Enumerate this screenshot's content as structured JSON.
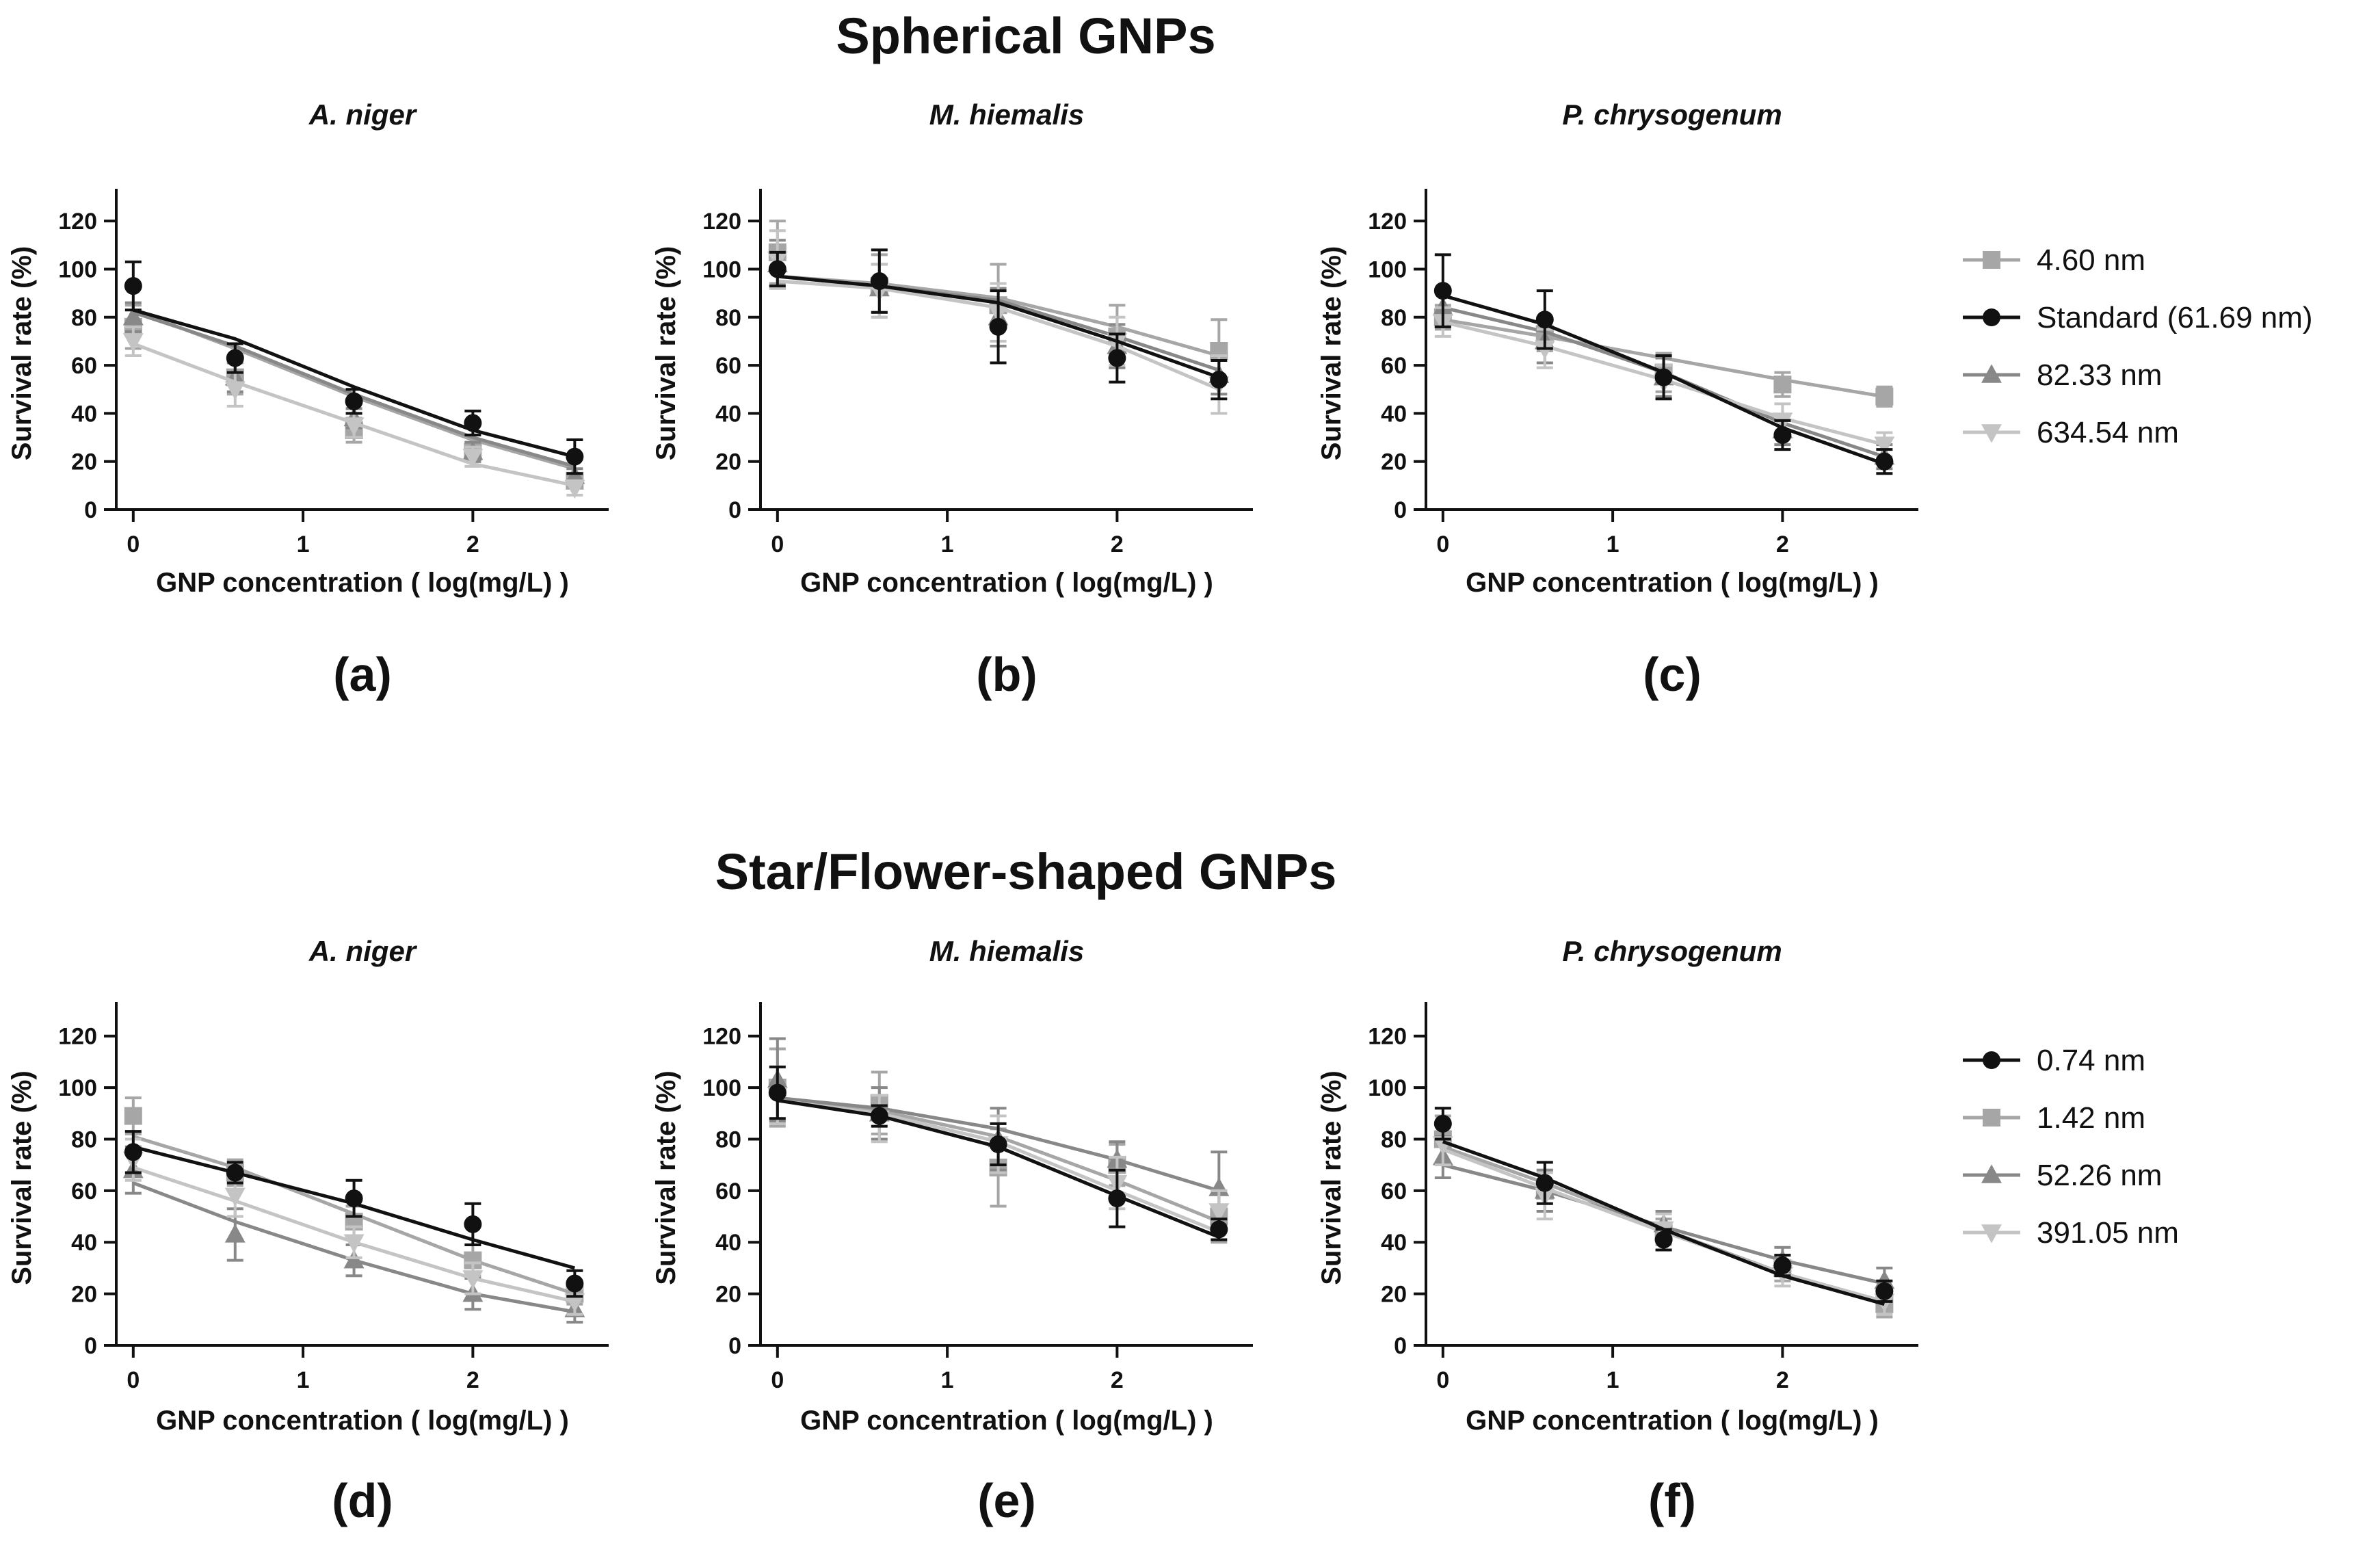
{
  "figure": {
    "row_titles": [
      "Spherical GNPs",
      "Star/Flower-shaped GNPs"
    ],
    "x_tick_labels": [
      "0",
      "1",
      "2"
    ],
    "y_tick_labels": [
      "0",
      "20",
      "40",
      "60",
      "80",
      "100",
      "120"
    ]
  },
  "series_styles": [
    {
      "name": "4.60 nm",
      "color": "#a6a6a6",
      "marker": "square"
    },
    {
      "name": "Standard (61.69 nm)",
      "color": "#111111",
      "marker": "circle"
    },
    {
      "name": "82.33 nm",
      "color": "#888888",
      "marker": "triangle"
    },
    {
      "name": "634.54 nm",
      "color": "#c4c4c4",
      "marker": "triangle-down"
    },
    {
      "name": "0.74 nm",
      "color": "#111111",
      "marker": "circle"
    },
    {
      "name": "1.42 nm",
      "color": "#a6a6a6",
      "marker": "square"
    },
    {
      "name": "52.26 nm",
      "color": "#888888",
      "marker": "triangle"
    },
    {
      "name": "391.05 nm",
      "color": "#c4c4c4",
      "marker": "triangle-down"
    }
  ],
  "chart_data": [
    {
      "type": "scatter",
      "panel_label": "(a)",
      "row": 0,
      "col": 0,
      "title": "A. niger",
      "xlabel": "GNP concentration ( log(mg/L) )",
      "ylabel": "Survival rate (%)",
      "xlim": [
        -0.1,
        2.8
      ],
      "ylim": [
        0,
        130
      ],
      "x": [
        0,
        0.6,
        1.3,
        2.0,
        2.6
      ],
      "series": [
        {
          "name": "4.60 nm",
          "values": [
            76,
            55,
            33,
            24,
            12
          ],
          "errors": [
            9,
            7,
            5,
            4,
            3
          ],
          "fit": [
            83,
            67,
            47,
            29,
            17
          ]
        },
        {
          "name": "Standard (61.69 nm)",
          "values": [
            93,
            63,
            45,
            36,
            22
          ],
          "errors": [
            10,
            6,
            5,
            5,
            7
          ],
          "fit": [
            83,
            71,
            51,
            33,
            22
          ]
        },
        {
          "name": "82.33 nm",
          "values": [
            80,
            55,
            38,
            24,
            14
          ],
          "errors": [
            6,
            6,
            4,
            4,
            3
          ],
          "fit": [
            82,
            68,
            48,
            30,
            18
          ]
        },
        {
          "name": "634.54 nm",
          "values": [
            70,
            50,
            35,
            22,
            9
          ],
          "errors": [
            6,
            7,
            5,
            4,
            3
          ],
          "fit": [
            69,
            53,
            36,
            19,
            10
          ]
        }
      ],
      "legend": "right"
    },
    {
      "type": "scatter",
      "panel_label": "(b)",
      "row": 0,
      "col": 1,
      "title": "M. hiemalis",
      "xlabel": "GNP concentration ( log(mg/L) )",
      "ylabel": "Survival rate (%)",
      "xlim": [
        -0.1,
        2.8
      ],
      "ylim": [
        0,
        130
      ],
      "x": [
        0,
        0.6,
        1.3,
        2.0,
        2.6
      ],
      "series": [
        {
          "name": "4.60 nm",
          "values": [
            107,
            93,
            85,
            72,
            66
          ],
          "errors": [
            13,
            13,
            17,
            13,
            13
          ],
          "fit": [
            97,
            94,
            88,
            76,
            64
          ]
        },
        {
          "name": "Standard (61.69 nm)",
          "values": [
            100,
            95,
            76,
            63,
            54
          ],
          "errors": [
            7,
            13,
            15,
            10,
            8
          ],
          "fit": [
            97,
            93,
            86,
            70,
            55
          ]
        },
        {
          "name": "82.33 nm",
          "values": [
            102,
            92,
            80,
            68,
            56
          ],
          "errors": [
            10,
            10,
            12,
            9,
            8
          ],
          "fit": [
            97,
            93,
            87,
            72,
            58
          ]
        },
        {
          "name": "634.54 nm",
          "values": [
            104,
            91,
            82,
            70,
            52
          ],
          "errors": [
            12,
            11,
            12,
            10,
            12
          ],
          "fit": [
            95,
            92,
            84,
            68,
            50
          ]
        }
      ]
    },
    {
      "type": "scatter",
      "panel_label": "(c)",
      "row": 0,
      "col": 2,
      "title": "P. chrysogenum",
      "xlabel": "GNP concentration ( log(mg/L) )",
      "ylabel": "Survival rate (%)",
      "xlim": [
        -0.1,
        2.8
      ],
      "ylim": [
        0,
        130
      ],
      "x": [
        0,
        0.6,
        1.3,
        2.0,
        2.6
      ],
      "series": [
        {
          "name": "4.60 nm",
          "values": [
            80,
            73,
            57,
            52,
            47
          ],
          "errors": [
            5,
            7,
            8,
            5,
            4
          ],
          "fit": [
            79,
            72,
            63,
            54,
            47
          ]
        },
        {
          "name": "Standard (61.69 nm)",
          "values": [
            91,
            79,
            55,
            31,
            20
          ],
          "errors": [
            15,
            12,
            9,
            6,
            5
          ],
          "fit": [
            89,
            77,
            57,
            34,
            19
          ]
        },
        {
          "name": "82.33 nm",
          "values": [
            84,
            70,
            55,
            33,
            22
          ],
          "errors": [
            8,
            9,
            8,
            6,
            5
          ],
          "fit": [
            84,
            74,
            57,
            36,
            22
          ]
        },
        {
          "name": "634.54 nm",
          "values": [
            78,
            67,
            53,
            37,
            27
          ],
          "errors": [
            6,
            8,
            7,
            7,
            5
          ],
          "fit": [
            78,
            68,
            54,
            38,
            27
          ]
        }
      ]
    },
    {
      "type": "scatter",
      "panel_label": "(d)",
      "row": 1,
      "col": 0,
      "title": "A. niger",
      "xlabel": "GNP concentration ( log(mg/L) )",
      "ylabel": "Survival rate (%)",
      "xlim": [
        -0.1,
        2.8
      ],
      "ylim": [
        0,
        130
      ],
      "x": [
        0,
        0.6,
        1.3,
        2.0,
        2.6
      ],
      "series": [
        {
          "name": "0.74 nm",
          "values": [
            75,
            67,
            57,
            47,
            24
          ],
          "errors": [
            8,
            4,
            7,
            8,
            5
          ],
          "fit": [
            77,
            67,
            55,
            41,
            30
          ]
        },
        {
          "name": "1.42 nm",
          "values": [
            89,
            67,
            48,
            33,
            20
          ],
          "errors": [
            7,
            5,
            6,
            6,
            4
          ],
          "fit": [
            81,
            69,
            51,
            33,
            20
          ]
        },
        {
          "name": "52.26 nm",
          "values": [
            68,
            43,
            33,
            20,
            14
          ],
          "errors": [
            9,
            10,
            6,
            6,
            5
          ],
          "fit": [
            63,
            48,
            33,
            20,
            13
          ]
        },
        {
          "name": "391.05 nm",
          "values": [
            72,
            58,
            40,
            26,
            17
          ],
          "errors": [
            8,
            8,
            6,
            6,
            5
          ],
          "fit": [
            69,
            56,
            40,
            26,
            17
          ]
        }
      ],
      "legend": "right"
    },
    {
      "type": "scatter",
      "panel_label": "(e)",
      "row": 1,
      "col": 1,
      "title": "M. hiemalis",
      "xlabel": "GNP concentration ( log(mg/L) )",
      "ylabel": "Survival rate (%)",
      "xlim": [
        -0.1,
        2.8
      ],
      "ylim": [
        0,
        130
      ],
      "x": [
        0,
        0.6,
        1.3,
        2.0,
        2.6
      ],
      "series": [
        {
          "name": "0.74 nm",
          "values": [
            98,
            89,
            78,
            57,
            45
          ],
          "errors": [
            10,
            4,
            8,
            11,
            4
          ],
          "fit": [
            95,
            89,
            77,
            58,
            42
          ]
        },
        {
          "name": "1.42 nm",
          "values": [
            100,
            94,
            69,
            70,
            50
          ],
          "errors": [
            15,
            12,
            15,
            8,
            10
          ],
          "fit": [
            96,
            91,
            81,
            64,
            48
          ]
        },
        {
          "name": "52.26 nm",
          "values": [
            103,
            90,
            80,
            72,
            61
          ],
          "errors": [
            16,
            10,
            12,
            7,
            14
          ],
          "fit": [
            96,
            92,
            84,
            72,
            60
          ]
        },
        {
          "name": "391.05 nm",
          "values": [
            97,
            88,
            78,
            63,
            52
          ],
          "errors": [
            11,
            9,
            11,
            10,
            8
          ],
          "fit": [
            95,
            90,
            79,
            60,
            44
          ]
        }
      ]
    },
    {
      "type": "scatter",
      "panel_label": "(f)",
      "row": 1,
      "col": 2,
      "title": "P. chrysogenum",
      "xlabel": "GNP concentration ( log(mg/L) )",
      "ylabel": "Survival rate (%)",
      "xlim": [
        -0.1,
        2.8
      ],
      "ylim": [
        0,
        130
      ],
      "x": [
        0,
        0.6,
        1.3,
        2.0,
        2.6
      ],
      "series": [
        {
          "name": "0.74 nm",
          "values": [
            86,
            63,
            41,
            31,
            21
          ],
          "errors": [
            6,
            8,
            4,
            4,
            4
          ],
          "fit": [
            79,
            65,
            45,
            27,
            16
          ]
        },
        {
          "name": "1.42 nm",
          "values": [
            80,
            60,
            44,
            30,
            16
          ],
          "errors": [
            9,
            8,
            5,
            5,
            5
          ],
          "fit": [
            77,
            63,
            45,
            28,
            17
          ]
        },
        {
          "name": "52.26 nm",
          "values": [
            73,
            60,
            47,
            33,
            25
          ],
          "errors": [
            8,
            8,
            5,
            5,
            5
          ],
          "fit": [
            70,
            60,
            46,
            33,
            24
          ]
        },
        {
          "name": "391.05 nm",
          "values": [
            78,
            58,
            45,
            28,
            17
          ],
          "errors": [
            8,
            9,
            6,
            5,
            5
          ],
          "fit": [
            76,
            61,
            44,
            28,
            17
          ]
        }
      ]
    }
  ]
}
